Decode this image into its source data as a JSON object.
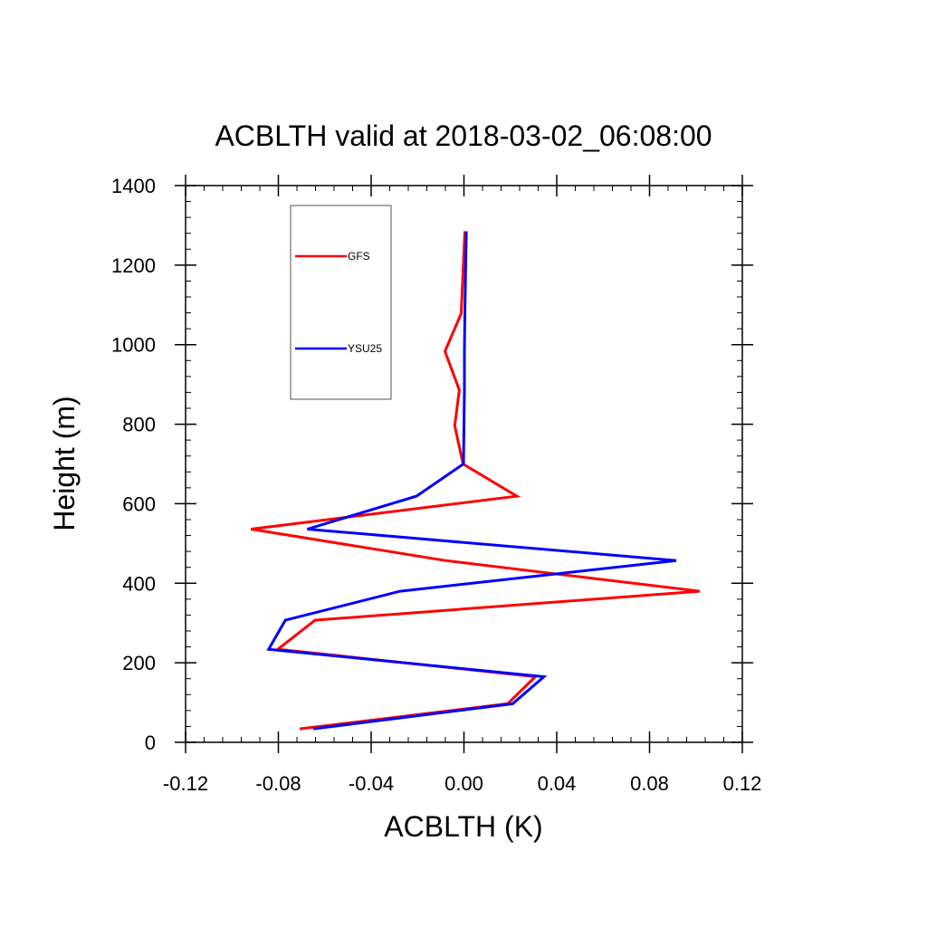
{
  "chart_data": {
    "type": "line",
    "title": "ACBLTH valid at 2018-03-02_06:08:00",
    "xlabel": "ACBLTH (K)",
    "ylabel": "Height (m)",
    "xlim": [
      -0.12,
      0.12
    ],
    "ylim": [
      0,
      1400
    ],
    "xticks": [
      "-0.12",
      "-0.08",
      "-0.04",
      "0.00",
      "0.04",
      "0.08",
      "0.12"
    ],
    "yticks": [
      "0",
      "200",
      "400",
      "600",
      "800",
      "1000",
      "1200",
      "1400"
    ],
    "xtick_values": [
      -0.12,
      -0.08,
      -0.04,
      0.0,
      0.04,
      0.08,
      0.12
    ],
    "ytick_values": [
      0,
      200,
      400,
      600,
      800,
      1000,
      1200,
      1400
    ],
    "grid": false,
    "legend_position": "top-left",
    "series": [
      {
        "name": "GFS",
        "color": "#ff0000",
        "x": [
          -0.0708,
          0.0188,
          0.0308,
          -0.0802,
          -0.0642,
          0.1016,
          -0.008,
          -0.0918,
          0.0228,
          -0.0004,
          -0.004,
          -0.002,
          -0.0082,
          -0.0012,
          0.0004
        ],
        "y": [
          34,
          97,
          165,
          234,
          307,
          380,
          457,
          536,
          619,
          700,
          796,
          886,
          983,
          1078,
          1285
        ]
      },
      {
        "name": "YSU25",
        "color": "#0000ff",
        "x": [
          -0.065,
          0.021,
          0.0345,
          -0.0842,
          -0.077,
          -0.0275,
          0.0915,
          -0.0675,
          -0.0205,
          -0.0002,
          0.0,
          0.0002,
          0.0002,
          0.0004,
          0.001
        ],
        "y": [
          34,
          97,
          165,
          234,
          307,
          380,
          457,
          536,
          619,
          700,
          796,
          886,
          983,
          1078,
          1285
        ]
      }
    ]
  }
}
